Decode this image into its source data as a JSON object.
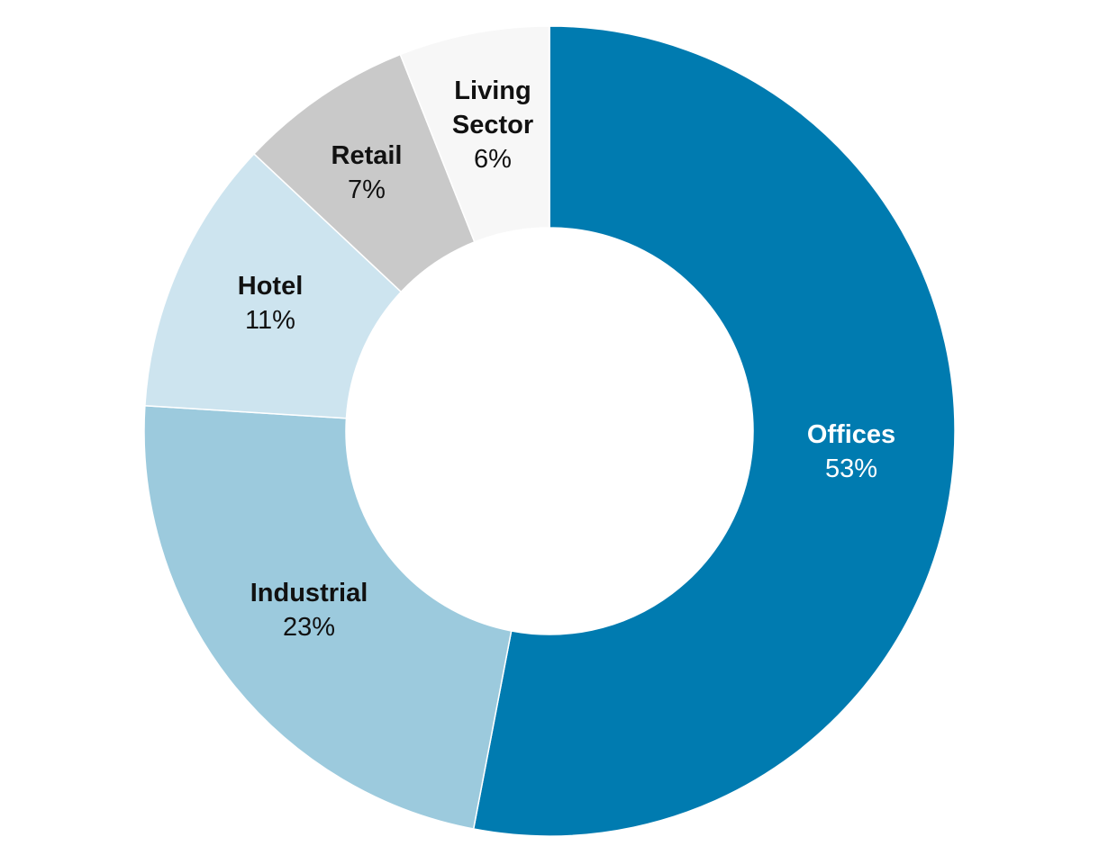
{
  "chart_data": {
    "type": "pie",
    "style": "donut",
    "slices": [
      {
        "label": "Offices",
        "value": 53,
        "display": "53%",
        "color": "#007bb0",
        "text_color": "#ffffff"
      },
      {
        "label": "Industrial",
        "value": 23,
        "display": "23%",
        "color": "#9ccadd",
        "text_color": "#111111"
      },
      {
        "label": "Hotel",
        "value": 11,
        "display": "11%",
        "color": "#cde4ef",
        "text_color": "#111111"
      },
      {
        "label": "Retail",
        "value": 7,
        "display": "7%",
        "color": "#c9c9c9",
        "text_color": "#111111"
      },
      {
        "label": "Living Sector",
        "value": 6,
        "display": "6%",
        "color": "#f7f7f7",
        "text_color": "#111111"
      }
    ]
  }
}
